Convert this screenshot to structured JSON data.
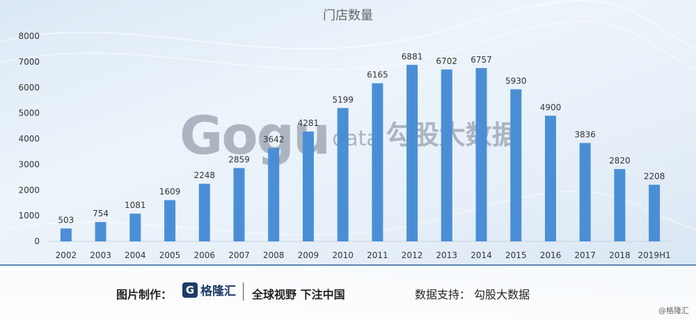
{
  "chart_data": {
    "type": "bar",
    "title": "门店数量",
    "categories": [
      "2002",
      "2003",
      "2004",
      "2005",
      "2006",
      "2007",
      "2008",
      "2009",
      "2010",
      "2011",
      "2012",
      "2013",
      "2014",
      "2015",
      "2016",
      "2017",
      "2018",
      "2019H1"
    ],
    "values": [
      503,
      754,
      1081,
      1609,
      2248,
      2859,
      3642,
      4281,
      5199,
      6165,
      6881,
      6702,
      6757,
      5930,
      4900,
      3836,
      2820,
      2208
    ],
    "ylim": [
      0,
      8000
    ],
    "yticks": [
      0,
      1000,
      2000,
      3000,
      4000,
      5000,
      6000,
      7000,
      8000
    ],
    "xlabel": "",
    "ylabel": "",
    "grid": false,
    "bar_color": "#4a8fd6"
  },
  "watermark": {
    "logo": "Gogu",
    "suffix": "data",
    "name": "勾股大数据"
  },
  "footer": {
    "credit_label": "图片制作：",
    "brand_icon": "G",
    "brand_name": "格隆汇",
    "slogan": "全球视野 下注中国",
    "support_label": "数据支持：  勾股大数据"
  },
  "corner_mark": "@格隆汇"
}
